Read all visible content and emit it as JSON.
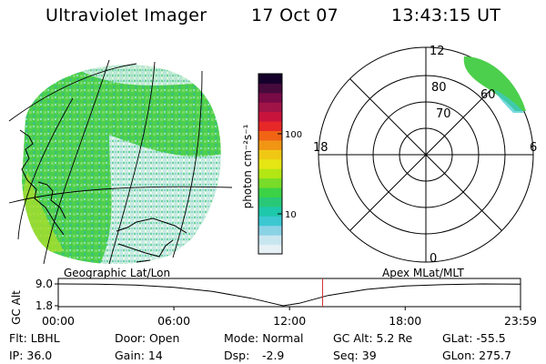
{
  "header": {
    "instrument": "Ultraviolet Imager",
    "date": "17 Oct 07",
    "time": "13:43:15 UT"
  },
  "colorbar": {
    "unit_label": "photon cm⁻²s⁻¹",
    "ticks": [
      "100",
      "10"
    ],
    "scale": "log",
    "colors": [
      "#e6f0f5",
      "#c8e6f0",
      "#8ad2e6",
      "#3cc8d2",
      "#1ec8aa",
      "#28c878",
      "#3cd246",
      "#78dc28",
      "#b4e614",
      "#e6e614",
      "#f0c814",
      "#f09614",
      "#f06414",
      "#e62828",
      "#c8143c",
      "#a01446",
      "#780a46",
      "#460a3c",
      "#14002a"
    ]
  },
  "polar": {
    "radial_labels": [
      "80",
      "70",
      "60"
    ],
    "mlt_labels": {
      "top": "12",
      "left": "18",
      "right": "6",
      "bottom": "0"
    }
  },
  "timeline": {
    "left_title": "Geographic Lat/Lon",
    "right_title": "Apex MLat/MLT",
    "y_axis_label": "GC Alt",
    "y_ticks": [
      "9.0",
      "1.8"
    ],
    "x_ticks": [
      "00:00",
      "06:00",
      "12:00",
      "18:00",
      "23:59"
    ]
  },
  "chart_data": {
    "type": "line",
    "title": "",
    "xlabel": "",
    "ylabel": "GC Alt",
    "x": [
      "00:00",
      "02:00",
      "04:00",
      "06:00",
      "08:00",
      "10:00",
      "11:00",
      "11:40",
      "12:30",
      "14:00",
      "16:00",
      "18:00",
      "20:00",
      "22:00",
      "23:59"
    ],
    "values": [
      9.0,
      8.9,
      8.6,
      7.9,
      6.5,
      4.3,
      2.8,
      1.8,
      2.6,
      5.2,
      7.2,
      8.3,
      8.8,
      9.0,
      8.9
    ],
    "ylim": [
      1.8,
      9.0
    ],
    "current_time": "13:43"
  },
  "footer": {
    "flt": "Flt: LBHL",
    "ip": "IP: 36.0",
    "door": "Door: Open",
    "gain": "Gain: 14",
    "mode": "Mode: Normal",
    "dsp_label": "Dsp:",
    "dsp_value": "-2.9",
    "gc_alt": "GC Alt: 5.2 Re",
    "seq": "Seq: 39",
    "glat": "GLat:  -55.5",
    "glon": "GLon: 275.7"
  },
  "colors": {
    "aurora_base": "#4ccf4c",
    "aurora_light": "#bfe7e6",
    "aurora_yellow": "#a6dd2c",
    "marker": "#d03030"
  }
}
